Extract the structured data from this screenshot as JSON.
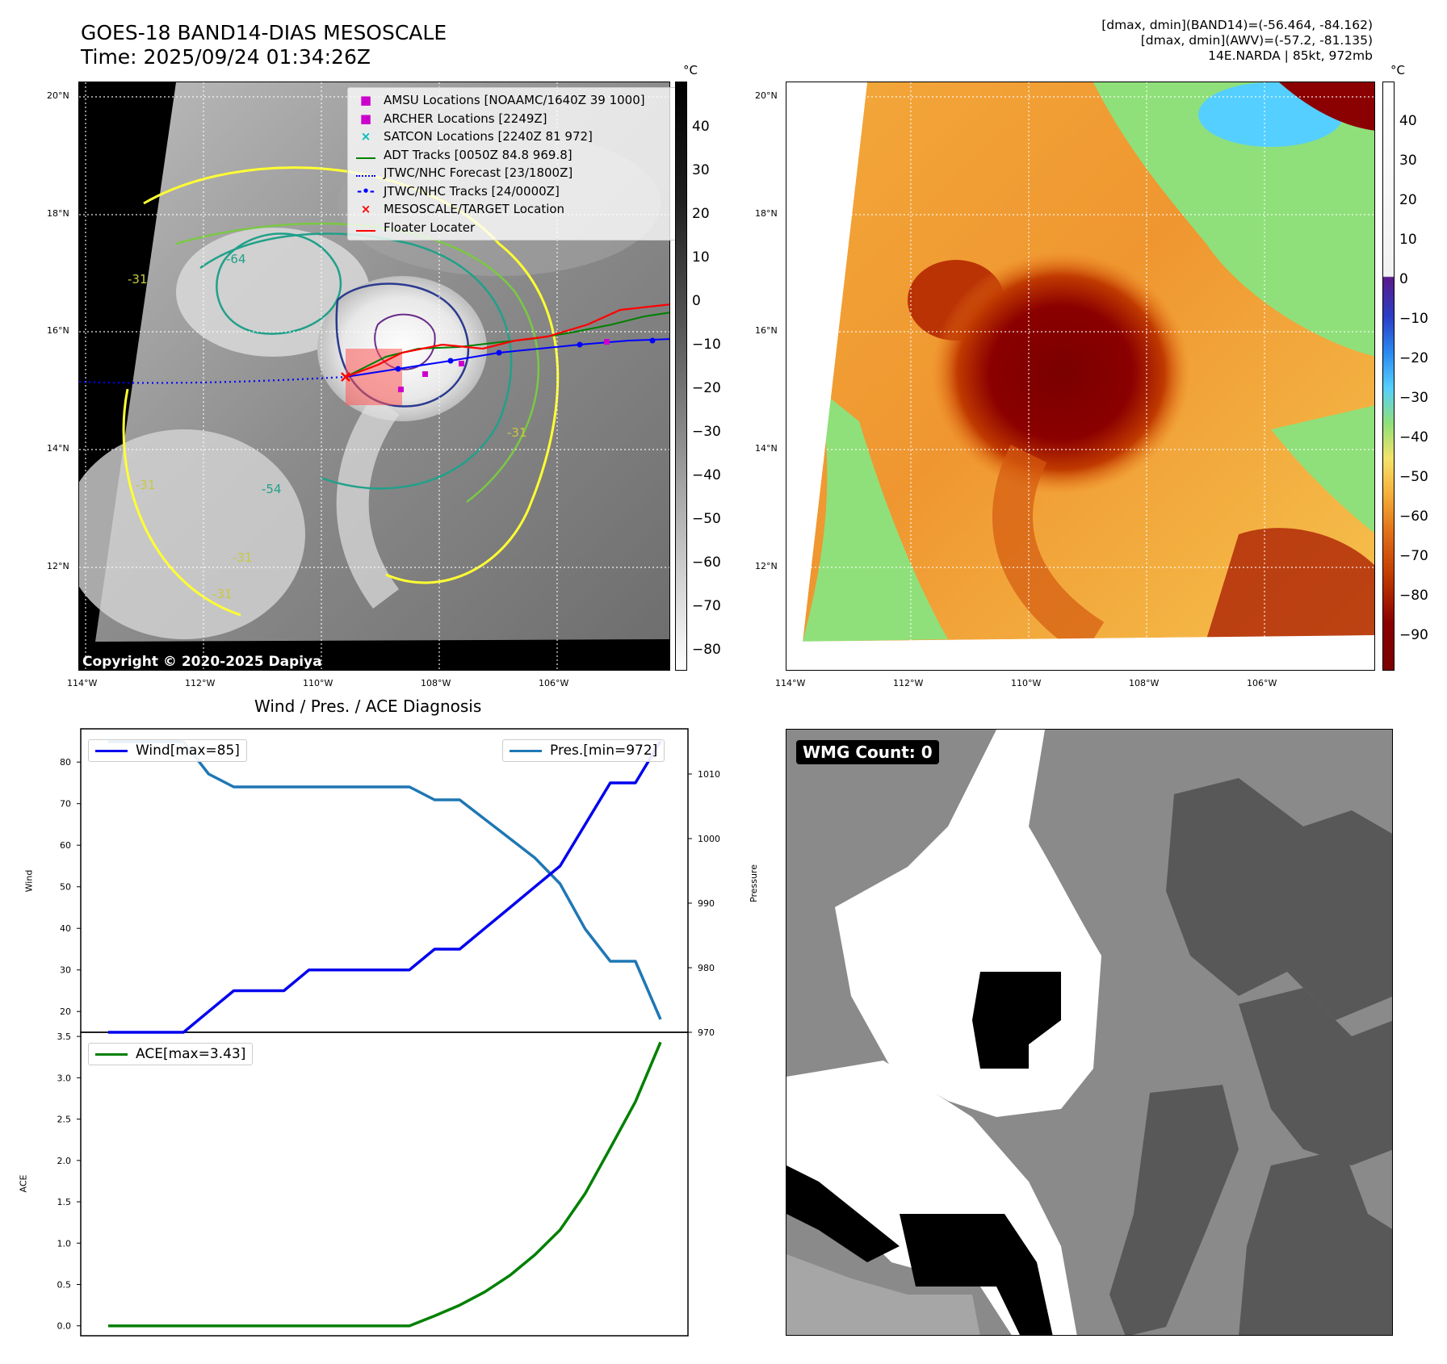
{
  "header": {
    "title_line1": "GOES-18 BAND14-DIAS MESOSCALE",
    "title_line2": "Time: 2025/09/24 01:34:26Z",
    "right_line1": "[dmax, dmin](BAND14)=(-56.464, -84.162)",
    "right_line2": "[dmax, dmin](AWV)=(-57.2, -81.135)",
    "right_line3": "14E.NARDA | 85kt, 972mb"
  },
  "map_panel": {
    "lat_ticks": [
      "20°N",
      "18°N",
      "16°N",
      "14°N",
      "12°N"
    ],
    "lon_ticks": [
      "114°W",
      "112°W",
      "110°W",
      "108°W",
      "106°W"
    ],
    "copyright": "Copyright © 2020-2025 Dapiya",
    "contour_labels": [
      "-64",
      "-54",
      "-31",
      "-31",
      "-31",
      "-31",
      "-31"
    ],
    "legend": [
      {
        "marker": "■",
        "color": "#cc00cc",
        "label": "AMSU Locations [NOAAMC/1640Z 39 1000]"
      },
      {
        "marker": "■",
        "color": "#cc00cc",
        "label": "ARCHER Locations [2249Z]"
      },
      {
        "marker": "×",
        "color": "#00bbbb",
        "label": "SATCON Locations [2240Z 81 972]"
      },
      {
        "marker": "line",
        "color": "#008000",
        "label": "ADT Tracks [0050Z 84.8 969.8]"
      },
      {
        "marker": "dotted",
        "color": "#0000ff",
        "label": "JTWC/NHC Forecast [23/1800Z]"
      },
      {
        "marker": "dotline",
        "color": "#0000ff",
        "label": "JTWC/NHC Tracks [24/0000Z]"
      },
      {
        "marker": "×",
        "color": "#ff0000",
        "label": "MESOSCALE/TARGET Location"
      },
      {
        "marker": "line",
        "color": "#ff0000",
        "label": "Floater Locater"
      }
    ],
    "colorbar": {
      "unit": "°C",
      "labels": [
        "40",
        "30",
        "20",
        "10",
        "0",
        "−10",
        "−20",
        "−30",
        "−40",
        "−50",
        "−60",
        "−70",
        "−80"
      ]
    }
  },
  "awv_panel": {
    "lat_ticks": [
      "20°N",
      "18°N",
      "16°N",
      "14°N",
      "12°N"
    ],
    "lon_ticks": [
      "114°W",
      "112°W",
      "110°W",
      "108°W",
      "106°W"
    ],
    "colorbar": {
      "unit": "°C",
      "labels": [
        "40",
        "30",
        "20",
        "10",
        "0",
        "−10",
        "−20",
        "−30",
        "−40",
        "−50",
        "−60",
        "−70",
        "−80",
        "−90"
      ]
    }
  },
  "wmg_panel": {
    "count_label": "WMG Count: 0"
  },
  "chart_data": [
    {
      "type": "line",
      "title": "Wind / Pres. / ACE Diagnosis",
      "ylabel": "Wind",
      "y2label": "Pressure",
      "ylim": [
        15,
        88
      ],
      "y2lim": [
        970,
        1017
      ],
      "yticks": [
        20,
        30,
        40,
        50,
        60,
        70,
        80
      ],
      "y2ticks": [
        970,
        980,
        990,
        1000,
        1010
      ],
      "series": [
        {
          "name": "Wind[max=85]",
          "color": "#0000ee",
          "axis": "left",
          "values": [
            15,
            15,
            15,
            15,
            20,
            25,
            25,
            25,
            30,
            30,
            30,
            30,
            30,
            35,
            35,
            40,
            45,
            50,
            55,
            65,
            75,
            75,
            85
          ]
        },
        {
          "name": "Pres.[min=972]",
          "color": "#1f77b4",
          "axis": "right",
          "values": [
            1015,
            1015,
            1015,
            1015,
            1010,
            1008,
            1008,
            1008,
            1008,
            1008,
            1008,
            1008,
            1008,
            1006,
            1006,
            1003,
            1000,
            997,
            993,
            986,
            981,
            981,
            972
          ]
        }
      ]
    },
    {
      "type": "line",
      "ylabel": "ACE",
      "ylim": [
        -0.12,
        3.55
      ],
      "yticks": [
        "0.0",
        "0.5",
        "1.0",
        "1.5",
        "2.0",
        "2.5",
        "3.0",
        "3.5"
      ],
      "series": [
        {
          "name": "ACE[max=3.43]",
          "color": "#008000",
          "values": [
            0,
            0,
            0,
            0,
            0,
            0,
            0,
            0,
            0,
            0,
            0,
            0,
            0,
            0.12,
            0.25,
            0.41,
            0.61,
            0.86,
            1.16,
            1.6,
            2.15,
            2.71,
            3.43
          ]
        }
      ]
    }
  ]
}
